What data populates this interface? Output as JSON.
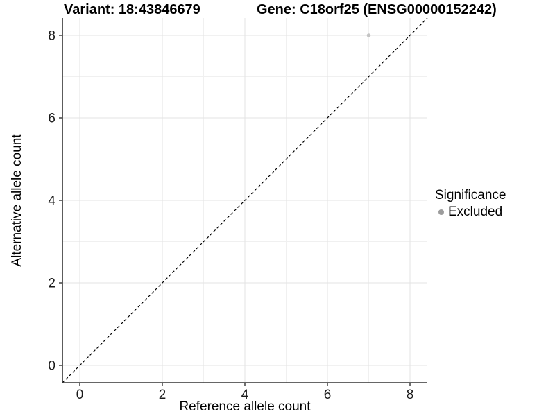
{
  "chart_data": {
    "type": "scatter",
    "title_left": "Variant: 18:43846679",
    "title_right": "Gene: C18orf25 (ENSG00000152242)",
    "xlabel": "Reference allele count",
    "ylabel": "Alternative allele count",
    "xlim": [
      -0.42,
      8.42
    ],
    "ylim": [
      -0.42,
      8.42
    ],
    "x_major_ticks": [
      0,
      2,
      4,
      6,
      8
    ],
    "x_minor_ticks": [
      1,
      3,
      5,
      7
    ],
    "y_major_ticks": [
      0,
      2,
      4,
      6,
      8
    ],
    "y_minor_ticks": [
      1,
      3,
      5,
      7
    ],
    "grid": "major+minor",
    "identity_line": {
      "slope": 1,
      "intercept": 0,
      "style": "dashed",
      "color": "#000000"
    },
    "series": [
      {
        "name": "Excluded",
        "marker": "circle",
        "color": "#c4c4c4",
        "points": [
          {
            "x": 7,
            "y": 8
          }
        ]
      }
    ],
    "legend": {
      "title": "Significance",
      "position": "right",
      "items": [
        {
          "label": "Excluded",
          "color": "#9c9c9c"
        }
      ]
    },
    "colors": {
      "grid_major": "#e3e3e3",
      "grid_minor": "#f0f0f0",
      "axis": "#333333",
      "tick_text": "#1a1a1a",
      "background": "#ffffff"
    }
  }
}
